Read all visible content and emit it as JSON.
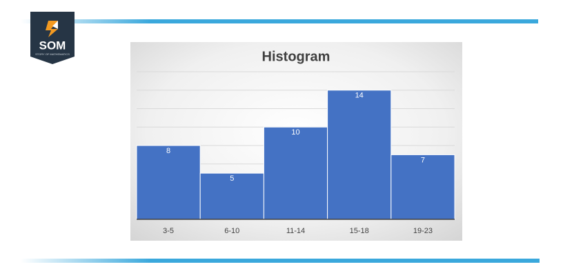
{
  "logo": {
    "text": "SOM",
    "tagline": "STORY OF MATHEMATICS"
  },
  "chart_data": {
    "type": "bar",
    "title": "Histogram",
    "categories": [
      "3-5",
      "6-10",
      "11-14",
      "15-18",
      "19-23"
    ],
    "values": [
      8,
      5,
      10,
      14,
      7
    ],
    "color": "#4472c4",
    "ylim": [
      0,
      16
    ],
    "yticks": [
      0,
      2,
      4,
      6,
      8,
      10,
      12,
      14,
      16
    ],
    "grid": true
  }
}
